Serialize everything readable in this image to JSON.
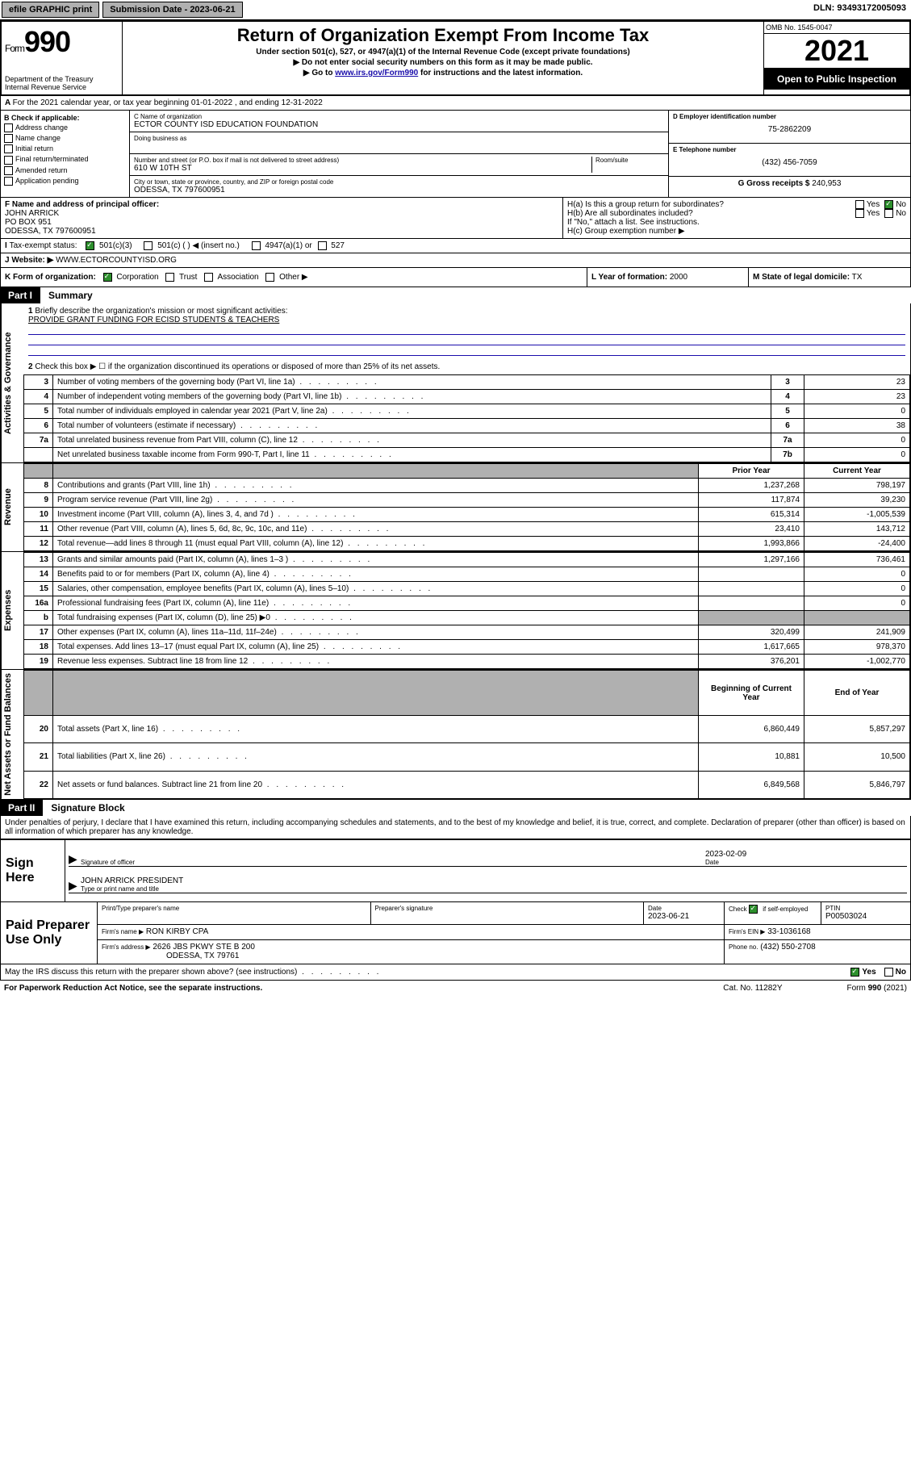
{
  "topbar": {
    "efile": "efile GRAPHIC print",
    "submission": "Submission Date - 2023-06-21",
    "dln": "DLN: 93493172005093"
  },
  "header": {
    "form_prefix": "Form",
    "form_number": "990",
    "dept": "Department of the Treasury",
    "irs": "Internal Revenue Service",
    "title": "Return of Organization Exempt From Income Tax",
    "subtitle": "Under section 501(c), 527, or 4947(a)(1) of the Internal Revenue Code (except private foundations)",
    "note1": "▶ Do not enter social security numbers on this form as it may be made public.",
    "note2_a": "▶ Go to ",
    "note2_link": "www.irs.gov/Form990",
    "note2_b": " for instructions and the latest information.",
    "omb": "OMB No. 1545-0047",
    "year": "2021",
    "open": "Open to Public Inspection"
  },
  "lineA": "For the 2021 calendar year, or tax year beginning 01-01-2022   , and ending 12-31-2022",
  "checkB": {
    "label": "B Check if applicable:",
    "items": [
      "Address change",
      "Name change",
      "Initial return",
      "Final return/terminated",
      "Amended return",
      "Application pending"
    ]
  },
  "org": {
    "c_label": "C Name of organization",
    "name": "ECTOR COUNTY ISD EDUCATION FOUNDATION",
    "dba": "Doing business as",
    "addr_label": "Number and street (or P.O. box if mail is not delivered to street address)",
    "room": "Room/suite",
    "street": "610 W 10TH ST",
    "city_label": "City or town, state or province, country, and ZIP or foreign postal code",
    "city": "ODESSA, TX  797600951"
  },
  "right": {
    "d_label": "D Employer identification number",
    "ein": "75-2862209",
    "e_label": "E Telephone number",
    "phone": "(432) 456-7059",
    "g_label": "G Gross receipts $",
    "gross": "240,953"
  },
  "lineF": {
    "label": "F Name and address of principal officer:",
    "name": "JOHN ARRICK",
    "po": "PO BOX 951",
    "addr": "ODESSA, TX  797600951"
  },
  "ha": "H(a)  Is this a group return for subordinates?",
  "hb": "H(b)  Are all subordinates included?",
  "hb_note": "If \"No,\" attach a list. See instructions.",
  "hc": "H(c)  Group exemption number ▶",
  "yesno": {
    "yes": "Yes",
    "no": "No"
  },
  "lineI": {
    "label": "Tax-exempt status:",
    "c3": "501(c)(3)",
    "c": "501(c) (   ) ◀ (insert no.)",
    "a1": "4947(a)(1) or",
    "s527": "527"
  },
  "lineJ": {
    "label": "Website: ▶",
    "url": "WWW.ECTORCOUNTYISD.ORG"
  },
  "lineK": {
    "label": "K Form of organization:",
    "corp": "Corporation",
    "trust": "Trust",
    "assoc": "Association",
    "other": "Other ▶"
  },
  "lineL": {
    "label": "L Year of formation:",
    "val": "2000"
  },
  "lineM": {
    "label": "M State of legal domicile:",
    "val": "TX"
  },
  "part1": {
    "label": "Part I",
    "title": "Summary"
  },
  "vtext": {
    "gov": "Activities & Governance",
    "rev": "Revenue",
    "exp": "Expenses",
    "net": "Net Assets or Fund Balances"
  },
  "q1": "Briefly describe the organization's mission or most significant activities:",
  "mission": "PROVIDE GRANT FUNDING FOR ECISD STUDENTS & TEACHERS",
  "q2": "Check this box ▶ ☐  if the organization discontinued its operations or disposed of more than 25% of its net assets.",
  "rows_gov": [
    {
      "n": "3",
      "t": "Number of voting members of the governing body (Part VI, line 1a)",
      "rn": "3",
      "v": "23"
    },
    {
      "n": "4",
      "t": "Number of independent voting members of the governing body (Part VI, line 1b)",
      "rn": "4",
      "v": "23"
    },
    {
      "n": "5",
      "t": "Total number of individuals employed in calendar year 2021 (Part V, line 2a)",
      "rn": "5",
      "v": "0"
    },
    {
      "n": "6",
      "t": "Total number of volunteers (estimate if necessary)",
      "rn": "6",
      "v": "38"
    },
    {
      "n": "7a",
      "t": "Total unrelated business revenue from Part VIII, column (C), line 12",
      "rn": "7a",
      "v": "0"
    },
    {
      "n": "",
      "t": "Net unrelated business taxable income from Form 990-T, Part I, line 11",
      "rn": "7b",
      "v": "0"
    }
  ],
  "col_head": {
    "py": "Prior Year",
    "cy": "Current Year"
  },
  "rows_rev": [
    {
      "n": "8",
      "t": "Contributions and grants (Part VIII, line 1h)",
      "py": "1,237,268",
      "cy": "798,197"
    },
    {
      "n": "9",
      "t": "Program service revenue (Part VIII, line 2g)",
      "py": "117,874",
      "cy": "39,230"
    },
    {
      "n": "10",
      "t": "Investment income (Part VIII, column (A), lines 3, 4, and 7d )",
      "py": "615,314",
      "cy": "-1,005,539"
    },
    {
      "n": "11",
      "t": "Other revenue (Part VIII, column (A), lines 5, 6d, 8c, 9c, 10c, and 11e)",
      "py": "23,410",
      "cy": "143,712"
    },
    {
      "n": "12",
      "t": "Total revenue—add lines 8 through 11 (must equal Part VIII, column (A), line 12)",
      "py": "1,993,866",
      "cy": "-24,400"
    }
  ],
  "rows_exp": [
    {
      "n": "13",
      "t": "Grants and similar amounts paid (Part IX, column (A), lines 1–3 )",
      "py": "1,297,166",
      "cy": "736,461"
    },
    {
      "n": "14",
      "t": "Benefits paid to or for members (Part IX, column (A), line 4)",
      "py": "",
      "cy": "0"
    },
    {
      "n": "15",
      "t": "Salaries, other compensation, employee benefits (Part IX, column (A), lines 5–10)",
      "py": "",
      "cy": "0"
    },
    {
      "n": "16a",
      "t": "Professional fundraising fees (Part IX, column (A), line 11e)",
      "py": "",
      "cy": "0"
    },
    {
      "n": "b",
      "t": "Total fundraising expenses (Part IX, column (D), line 25) ▶0",
      "py": "shade",
      "cy": "shade"
    },
    {
      "n": "17",
      "t": "Other expenses (Part IX, column (A), lines 11a–11d, 11f–24e)",
      "py": "320,499",
      "cy": "241,909"
    },
    {
      "n": "18",
      "t": "Total expenses. Add lines 13–17 (must equal Part IX, column (A), line 25)",
      "py": "1,617,665",
      "cy": "978,370"
    },
    {
      "n": "19",
      "t": "Revenue less expenses. Subtract line 18 from line 12",
      "py": "376,201",
      "cy": "-1,002,770"
    }
  ],
  "col_head2": {
    "py": "Beginning of Current Year",
    "cy": "End of Year"
  },
  "rows_net": [
    {
      "n": "20",
      "t": "Total assets (Part X, line 16)",
      "py": "6,860,449",
      "cy": "5,857,297"
    },
    {
      "n": "21",
      "t": "Total liabilities (Part X, line 26)",
      "py": "10,881",
      "cy": "10,500"
    },
    {
      "n": "22",
      "t": "Net assets or fund balances. Subtract line 21 from line 20",
      "py": "6,849,568",
      "cy": "5,846,797"
    }
  ],
  "part2": {
    "label": "Part II",
    "title": "Signature Block"
  },
  "penalties": "Under penalties of perjury, I declare that I have examined this return, including accompanying schedules and statements, and to the best of my knowledge and belief, it is true, correct, and complete. Declaration of preparer (other than officer) is based on all information of which preparer has any knowledge.",
  "sign": {
    "here": "Sign Here",
    "sig_of": "Signature of officer",
    "date_lbl": "Date",
    "date": "2023-02-09",
    "name": "JOHN ARRICK PRESIDENT",
    "name_lbl": "Type or print name and title"
  },
  "prep": {
    "label": "Paid Preparer Use Only",
    "h1": "Print/Type preparer's name",
    "h2": "Preparer's signature",
    "h3": "Date",
    "date": "2023-06-21",
    "h4a": "Check",
    "h4b": "if self-employed",
    "h5": "PTIN",
    "ptin": "P00503024",
    "firm_lbl": "Firm's name    ▶",
    "firm": "RON KIRBY CPA",
    "ein_lbl": "Firm's EIN ▶",
    "ein": "33-1036168",
    "addr_lbl": "Firm's address ▶",
    "addr1": "2626 JBS PKWY STE B 200",
    "addr2": "ODESSA, TX  79761",
    "ph_lbl": "Phone no.",
    "phone": "(432) 550-2708"
  },
  "may_discuss": "May the IRS discuss this return with the preparer shown above? (see instructions)",
  "footer": {
    "pra": "For Paperwork Reduction Act Notice, see the separate instructions.",
    "cat": "Cat. No. 11282Y",
    "form": "Form 990 (2021)"
  }
}
